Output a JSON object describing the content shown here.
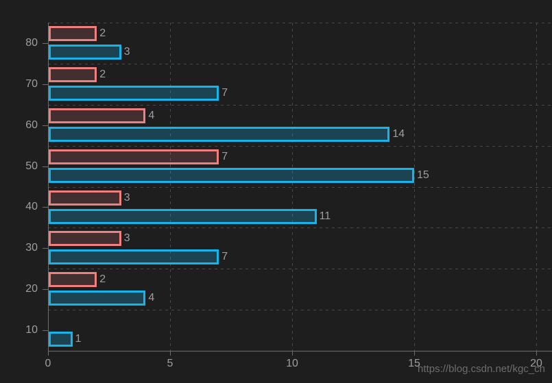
{
  "chart_data": {
    "type": "bar",
    "orientation": "horizontal",
    "title": "",
    "xlabel": "",
    "ylabel": "",
    "legend": "none",
    "grid": "dashed",
    "value_labels": "end-of-bar",
    "categories_top_to_bottom": [
      "80",
      "70",
      "60",
      "50",
      "40",
      "30",
      "20",
      "10"
    ],
    "series": [
      {
        "name": "red",
        "border_color": "#f08080",
        "fill_color": "rgba(240,128,128,0.18)",
        "values": [
          2,
          2,
          4,
          7,
          3,
          3,
          2,
          null
        ]
      },
      {
        "name": "blue",
        "border_color": "#17b4ec",
        "fill_color": "rgba(23,180,236,0.25)",
        "values": [
          3,
          7,
          14,
          15,
          11,
          7,
          4,
          1
        ]
      }
    ],
    "x_ticks": [
      "0",
      "5",
      "10",
      "15",
      "20"
    ],
    "x_tick_values": [
      0,
      5,
      10,
      15,
      20
    ],
    "xlim": [
      0,
      20.65
    ]
  },
  "watermark": {
    "text": "https://blog.csdn.net/kgc_cn"
  },
  "theme": {
    "background": "#1e1e1e",
    "grid_line": "#4a4a4a",
    "axis_line": "#6e6e6e",
    "tick_label_color": "#9e9e9e",
    "value_label_color": "#9e9e9e",
    "watermark_color": "#6d6d6d"
  }
}
